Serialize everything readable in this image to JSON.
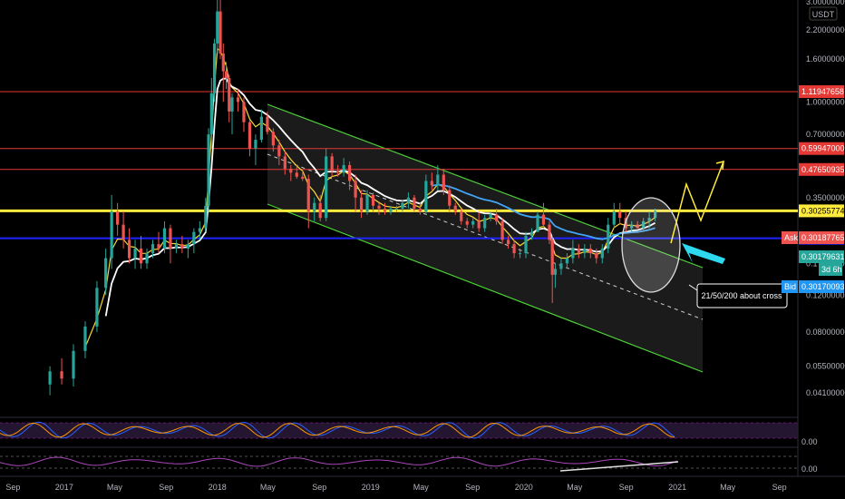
{
  "chart_data": {
    "type": "candlestick",
    "title": "",
    "currency_label": "USDT",
    "y_scale": "log",
    "ylim": [
      0.032,
      3.0
    ],
    "xlim": [
      "2016-08-01",
      "2021-10-15"
    ],
    "y_tick_labels": [
      {
        "value": 3.0,
        "label": "3.00000000"
      },
      {
        "value": 2.2,
        "label": "2.20000000"
      },
      {
        "value": 1.6,
        "label": "1.60000000"
      },
      {
        "value": 1.0,
        "label": "1.00000000"
      },
      {
        "value": 0.7,
        "label": "0.70000000"
      },
      {
        "value": 0.35,
        "label": "0.35000000"
      },
      {
        "value": 0.17,
        "label": "0.17000000"
      },
      {
        "value": 0.12,
        "label": "0.12000000"
      },
      {
        "value": 0.08,
        "label": "0.08000000"
      },
      {
        "value": 0.055,
        "label": "0.05500000"
      },
      {
        "value": 0.041,
        "label": "0.04100000"
      }
    ],
    "x_tick_labels": [
      {
        "date": "2016-09-01",
        "label": "Sep"
      },
      {
        "date": "2017-01-01",
        "label": "2017"
      },
      {
        "date": "2017-05-01",
        "label": "May"
      },
      {
        "date": "2017-09-01",
        "label": "Sep"
      },
      {
        "date": "2018-01-01",
        "label": "2018"
      },
      {
        "date": "2018-05-01",
        "label": "May"
      },
      {
        "date": "2018-09-01",
        "label": "Sep"
      },
      {
        "date": "2019-01-01",
        "label": "2019"
      },
      {
        "date": "2019-05-01",
        "label": "May"
      },
      {
        "date": "2019-09-01",
        "label": "Sep"
      },
      {
        "date": "2020-01-01",
        "label": "2020"
      },
      {
        "date": "2020-05-01",
        "label": "May"
      },
      {
        "date": "2020-09-01",
        "label": "Sep"
      },
      {
        "date": "2021-01-01",
        "label": "2021"
      },
      {
        "date": "2021-05-01",
        "label": "May"
      },
      {
        "date": "2021-09-01",
        "label": "Sep"
      }
    ],
    "horizontal_levels": [
      {
        "value": 1.11947658,
        "label": "1.11947658",
        "color": "#e53935",
        "width": 1
      },
      {
        "value": 0.59947,
        "label": "0.59947000",
        "color": "#e53935",
        "width": 1
      },
      {
        "value": 0.47650935,
        "label": "0.47650935",
        "color": "#e53935",
        "width": 1
      },
      {
        "value": 0.30255774,
        "label": "0.30255774",
        "color": "#ffeb3b",
        "width": 3
      },
      {
        "value": 0.22380388,
        "label": "0.22380388",
        "color": "#1f24ff",
        "width": 2
      }
    ],
    "price_tags": [
      {
        "kind": "ask",
        "caption": "Ask",
        "label": "0.30187765",
        "color": "#ef5350"
      },
      {
        "kind": "last",
        "caption": "",
        "label": "0.30179631",
        "color": "#26a69a"
      },
      {
        "kind": "countdown",
        "caption": "",
        "label": "3d 6h",
        "color": "#26a69a"
      },
      {
        "kind": "bid",
        "caption": "Bid",
        "label": "0.30170093",
        "color": "#2196f3"
      }
    ],
    "annotation_text": "21/50/200 about cross",
    "candles": [
      [
        "2016-11-28",
        0.045,
        0.055,
        0.04,
        0.052
      ],
      [
        "2016-12-26",
        0.052,
        0.06,
        0.045,
        0.048
      ],
      [
        "2017-01-23",
        0.048,
        0.07,
        0.044,
        0.065
      ],
      [
        "2017-02-20",
        0.065,
        0.09,
        0.06,
        0.085
      ],
      [
        "2017-03-20",
        0.085,
        0.14,
        0.08,
        0.13
      ],
      [
        "2017-04-10",
        0.13,
        0.2,
        0.12,
        0.18
      ],
      [
        "2017-04-24",
        0.18,
        0.36,
        0.16,
        0.3
      ],
      [
        "2017-05-08",
        0.3,
        0.33,
        0.23,
        0.26
      ],
      [
        "2017-05-22",
        0.26,
        0.3,
        0.2,
        0.22
      ],
      [
        "2017-06-05",
        0.22,
        0.25,
        0.17,
        0.18
      ],
      [
        "2017-06-19",
        0.18,
        0.22,
        0.16,
        0.2
      ],
      [
        "2017-07-03",
        0.2,
        0.23,
        0.16,
        0.17
      ],
      [
        "2017-07-17",
        0.17,
        0.2,
        0.16,
        0.19
      ],
      [
        "2017-07-31",
        0.19,
        0.22,
        0.18,
        0.21
      ],
      [
        "2017-08-14",
        0.21,
        0.24,
        0.19,
        0.2
      ],
      [
        "2017-08-28",
        0.2,
        0.27,
        0.19,
        0.25
      ],
      [
        "2017-09-11",
        0.25,
        0.26,
        0.17,
        0.2
      ],
      [
        "2017-09-25",
        0.2,
        0.22,
        0.19,
        0.21
      ],
      [
        "2017-10-09",
        0.21,
        0.23,
        0.19,
        0.2
      ],
      [
        "2017-10-23",
        0.2,
        0.22,
        0.18,
        0.21
      ],
      [
        "2017-11-06",
        0.21,
        0.25,
        0.19,
        0.24
      ],
      [
        "2017-11-20",
        0.24,
        0.27,
        0.22,
        0.25
      ],
      [
        "2017-12-04",
        0.25,
        0.35,
        0.24,
        0.32
      ],
      [
        "2017-12-11",
        0.32,
        0.75,
        0.3,
        0.7
      ],
      [
        "2017-12-18",
        0.7,
        1.3,
        0.6,
        1.1
      ],
      [
        "2017-12-25",
        1.1,
        2.0,
        1.0,
        1.9
      ],
      [
        "2018-01-01",
        1.9,
        3.2,
        1.7,
        2.7
      ],
      [
        "2018-01-08",
        2.7,
        3.1,
        1.6,
        1.7
      ],
      [
        "2018-01-15",
        1.7,
        1.9,
        1.0,
        1.4
      ],
      [
        "2018-01-22",
        1.4,
        1.55,
        1.15,
        1.3
      ],
      [
        "2018-01-29",
        1.3,
        1.35,
        0.8,
        0.9
      ],
      [
        "2018-02-05",
        0.9,
        1.1,
        0.7,
        1.05
      ],
      [
        "2018-02-19",
        1.05,
        1.15,
        0.9,
        1.0
      ],
      [
        "2018-03-05",
        1.0,
        1.05,
        0.72,
        0.8
      ],
      [
        "2018-03-19",
        0.8,
        0.82,
        0.55,
        0.6
      ],
      [
        "2018-04-02",
        0.6,
        0.7,
        0.5,
        0.66
      ],
      [
        "2018-04-16",
        0.66,
        0.92,
        0.64,
        0.85
      ],
      [
        "2018-04-30",
        0.85,
        0.9,
        0.7,
        0.72
      ],
      [
        "2018-05-14",
        0.72,
        0.75,
        0.58,
        0.62
      ],
      [
        "2018-05-28",
        0.62,
        0.66,
        0.5,
        0.55
      ],
      [
        "2018-06-11",
        0.55,
        0.58,
        0.45,
        0.48
      ],
      [
        "2018-06-25",
        0.48,
        0.5,
        0.42,
        0.46
      ],
      [
        "2018-07-09",
        0.46,
        0.5,
        0.43,
        0.44
      ],
      [
        "2018-07-23",
        0.44,
        0.47,
        0.42,
        0.43
      ],
      [
        "2018-08-06",
        0.43,
        0.45,
        0.25,
        0.3
      ],
      [
        "2018-08-20",
        0.3,
        0.35,
        0.27,
        0.33
      ],
      [
        "2018-09-03",
        0.33,
        0.36,
        0.27,
        0.28
      ],
      [
        "2018-09-17",
        0.28,
        0.6,
        0.27,
        0.55
      ],
      [
        "2018-10-01",
        0.55,
        0.57,
        0.44,
        0.47
      ],
      [
        "2018-10-15",
        0.47,
        0.5,
        0.44,
        0.46
      ],
      [
        "2018-10-29",
        0.46,
        0.54,
        0.44,
        0.5
      ],
      [
        "2018-11-12",
        0.5,
        0.52,
        0.38,
        0.42
      ],
      [
        "2018-11-26",
        0.42,
        0.45,
        0.3,
        0.35
      ],
      [
        "2018-12-10",
        0.35,
        0.38,
        0.28,
        0.3
      ],
      [
        "2018-12-24",
        0.3,
        0.38,
        0.29,
        0.36
      ],
      [
        "2019-01-07",
        0.36,
        0.37,
        0.3,
        0.32
      ],
      [
        "2019-01-21",
        0.32,
        0.33,
        0.29,
        0.31
      ],
      [
        "2019-02-04",
        0.31,
        0.33,
        0.29,
        0.3
      ],
      [
        "2019-02-18",
        0.3,
        0.32,
        0.29,
        0.31
      ],
      [
        "2019-03-04",
        0.31,
        0.32,
        0.3,
        0.31
      ],
      [
        "2019-03-18",
        0.31,
        0.34,
        0.3,
        0.33
      ],
      [
        "2019-04-01",
        0.33,
        0.37,
        0.31,
        0.35
      ],
      [
        "2019-04-15",
        0.35,
        0.36,
        0.3,
        0.31
      ],
      [
        "2019-04-29",
        0.31,
        0.33,
        0.29,
        0.3
      ],
      [
        "2019-05-13",
        0.3,
        0.45,
        0.29,
        0.42
      ],
      [
        "2019-05-27",
        0.42,
        0.46,
        0.38,
        0.4
      ],
      [
        "2019-06-10",
        0.4,
        0.5,
        0.38,
        0.45
      ],
      [
        "2019-06-24",
        0.45,
        0.48,
        0.36,
        0.38
      ],
      [
        "2019-07-08",
        0.38,
        0.4,
        0.3,
        0.32
      ],
      [
        "2019-07-22",
        0.32,
        0.33,
        0.29,
        0.3
      ],
      [
        "2019-08-05",
        0.3,
        0.31,
        0.26,
        0.27
      ],
      [
        "2019-08-19",
        0.27,
        0.28,
        0.25,
        0.26
      ],
      [
        "2019-09-02",
        0.26,
        0.28,
        0.25,
        0.27
      ],
      [
        "2019-09-16",
        0.27,
        0.3,
        0.24,
        0.25
      ],
      [
        "2019-09-30",
        0.25,
        0.29,
        0.24,
        0.28
      ],
      [
        "2019-10-14",
        0.28,
        0.3,
        0.27,
        0.29
      ],
      [
        "2019-10-28",
        0.29,
        0.31,
        0.26,
        0.27
      ],
      [
        "2019-11-11",
        0.27,
        0.28,
        0.21,
        0.22
      ],
      [
        "2019-11-25",
        0.22,
        0.23,
        0.2,
        0.21
      ],
      [
        "2019-12-09",
        0.21,
        0.22,
        0.18,
        0.19
      ],
      [
        "2019-12-23",
        0.19,
        0.2,
        0.18,
        0.19
      ],
      [
        "2020-01-06",
        0.19,
        0.24,
        0.18,
        0.23
      ],
      [
        "2020-01-20",
        0.23,
        0.25,
        0.22,
        0.24
      ],
      [
        "2020-02-03",
        0.24,
        0.3,
        0.24,
        0.29
      ],
      [
        "2020-02-17",
        0.29,
        0.33,
        0.25,
        0.26
      ],
      [
        "2020-03-02",
        0.26,
        0.27,
        0.21,
        0.22
      ],
      [
        "2020-03-09",
        0.22,
        0.23,
        0.11,
        0.15
      ],
      [
        "2020-03-16",
        0.15,
        0.17,
        0.13,
        0.16
      ],
      [
        "2020-03-30",
        0.16,
        0.18,
        0.15,
        0.17
      ],
      [
        "2020-04-13",
        0.17,
        0.19,
        0.16,
        0.18
      ],
      [
        "2020-04-27",
        0.18,
        0.22,
        0.17,
        0.2
      ],
      [
        "2020-05-11",
        0.2,
        0.21,
        0.18,
        0.19
      ],
      [
        "2020-05-25",
        0.19,
        0.21,
        0.18,
        0.2
      ],
      [
        "2020-06-08",
        0.2,
        0.21,
        0.18,
        0.19
      ],
      [
        "2020-06-22",
        0.19,
        0.2,
        0.17,
        0.18
      ],
      [
        "2020-07-06",
        0.18,
        0.21,
        0.17,
        0.2
      ],
      [
        "2020-07-20",
        0.2,
        0.28,
        0.19,
        0.26
      ],
      [
        "2020-08-03",
        0.26,
        0.33,
        0.25,
        0.3
      ],
      [
        "2020-08-17",
        0.3,
        0.33,
        0.26,
        0.28
      ],
      [
        "2020-08-31",
        0.28,
        0.3,
        0.24,
        0.25
      ],
      [
        "2020-09-14",
        0.25,
        0.27,
        0.24,
        0.26
      ],
      [
        "2020-09-28",
        0.26,
        0.27,
        0.25,
        0.25
      ],
      [
        "2020-10-12",
        0.25,
        0.28,
        0.24,
        0.27
      ],
      [
        "2020-10-26",
        0.27,
        0.3,
        0.25,
        0.28
      ],
      [
        "2020-11-09",
        0.28,
        0.31,
        0.27,
        0.302
      ]
    ]
  }
}
